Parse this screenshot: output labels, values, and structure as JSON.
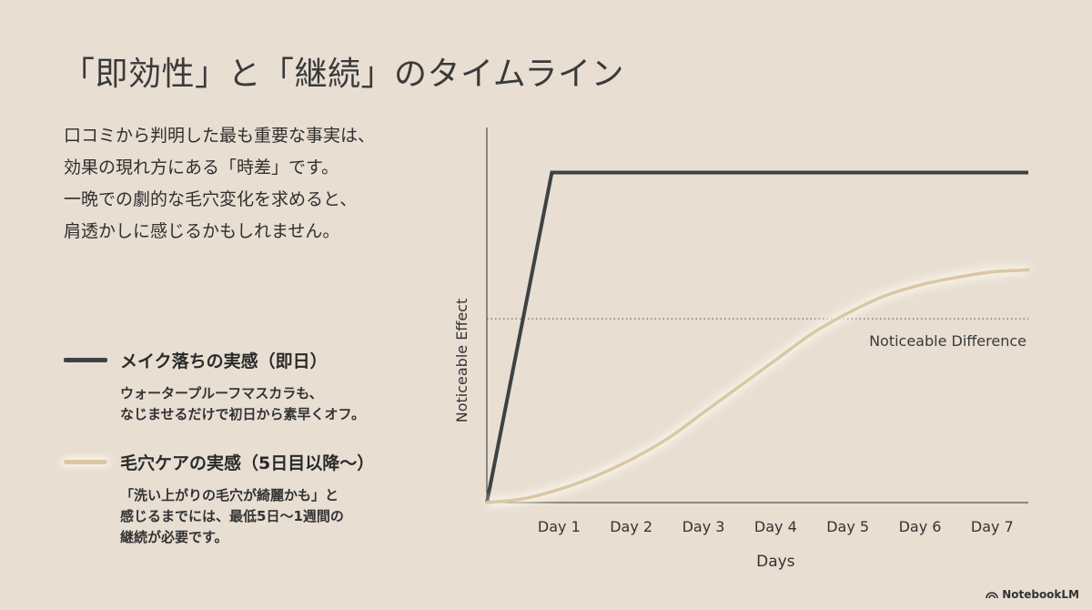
{
  "title": "「即効性」と「継続」のタイムライン",
  "intro": {
    "lines": [
      "口コミから判明した最も重要な事実は、",
      "効果の現れ方にある「時差」です。",
      "一晩での劇的な毛穴変化を求めると、",
      "肩透かしに感じるかもしれません。"
    ]
  },
  "legend": {
    "makeup": {
      "label": "メイク落ちの実感（即日）",
      "desc": [
        "ウォータープルーフマスカラも、",
        "なじませるだけで初日から素早くオフ。"
      ],
      "color": "#3d4245"
    },
    "pore": {
      "label": "毛穴ケアの実感（5日目以降〜）",
      "desc": [
        "「洗い上がりの毛穴が綺麗かも」と",
        "感じるまでには、最低5日〜1週間の",
        "継続が必要です。"
      ],
      "color": "#d9c8a3"
    }
  },
  "brand": "NotebookLM",
  "chart_data": {
    "type": "line",
    "xlabel": "Days",
    "ylabel": "Noticeable Effect",
    "x_ticks": [
      "Day 1",
      "Day 2",
      "Day 3",
      "Day 4",
      "Day 5",
      "Day 6",
      "Day 7"
    ],
    "xlim": [
      0,
      7.5
    ],
    "ylim": [
      0,
      1
    ],
    "threshold": {
      "label": "Noticeable Difference",
      "value": 0.49
    },
    "series": [
      {
        "key": "makeup",
        "color": "#3d4245",
        "points": [
          [
            0,
            0
          ],
          [
            0.9,
            0.88
          ],
          [
            7.5,
            0.88
          ]
        ]
      },
      {
        "key": "pore",
        "color": "#d9c8a3",
        "points": [
          [
            0,
            0
          ],
          [
            0.5,
            0.01
          ],
          [
            1,
            0.035
          ],
          [
            1.5,
            0.07
          ],
          [
            2,
            0.115
          ],
          [
            2.5,
            0.17
          ],
          [
            3,
            0.24
          ],
          [
            3.5,
            0.31
          ],
          [
            4,
            0.38
          ],
          [
            4.5,
            0.45
          ],
          [
            5,
            0.505
          ],
          [
            5.5,
            0.55
          ],
          [
            6,
            0.58
          ],
          [
            6.5,
            0.6
          ],
          [
            7,
            0.615
          ],
          [
            7.5,
            0.62
          ]
        ]
      }
    ]
  }
}
